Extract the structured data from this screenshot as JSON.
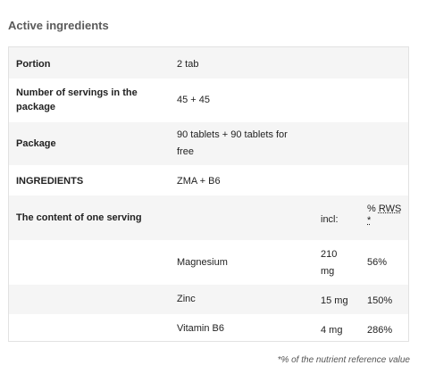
{
  "section": {
    "title": "Active ingredients"
  },
  "rows": {
    "portion": {
      "label": "Portion",
      "value": "2 tab"
    },
    "servings": {
      "label": "Number of servings in the package",
      "value": "45 + 45"
    },
    "package": {
      "label": "Package",
      "value": "90 tablets + 90 tablets for free"
    },
    "ingredients": {
      "label": "INGREDIENTS",
      "value": "ZMA + B6"
    },
    "content_header": {
      "label": "The content of one serving",
      "amount_header": "incl:",
      "rws_pct": "%",
      "rws_abbr": "RWS",
      "rws_star": "*"
    }
  },
  "nutrients": [
    {
      "name": "Magnesium",
      "amount": "210 mg",
      "rws": "56%"
    },
    {
      "name": "Zinc",
      "amount": "15 mg",
      "rws": "150%"
    },
    {
      "name": "Vitamin B6",
      "amount": "4 mg",
      "rws": "286%"
    }
  ],
  "footnote": "*% of the nutrient reference value"
}
